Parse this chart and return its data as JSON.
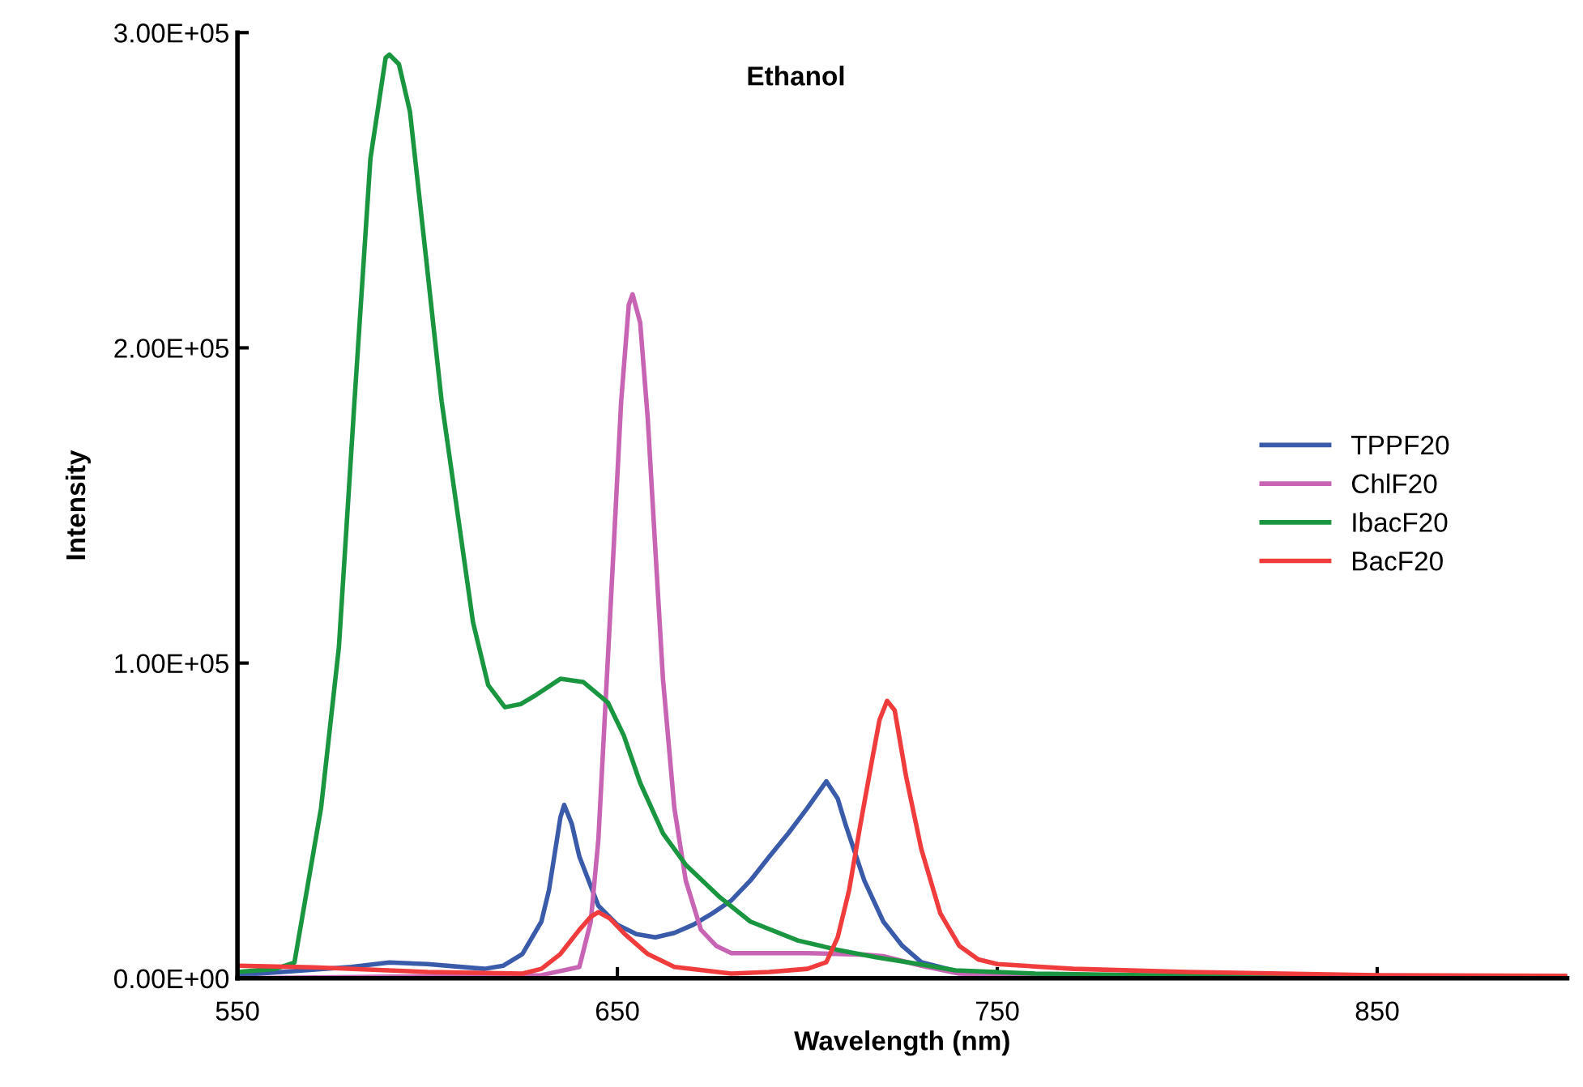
{
  "chart_data": {
    "type": "line",
    "title": "Ethanol",
    "xlabel": "Wavelength (nm)",
    "ylabel": "Intensity",
    "xlim": [
      550,
      900
    ],
    "xticks": [
      550,
      650,
      750,
      850
    ],
    "ylim": [
      0,
      300000
    ],
    "yticks": [
      {
        "value": 0,
        "label": "0.00E+00"
      },
      {
        "value": 100000,
        "label": "1.00E+05"
      },
      {
        "value": 200000,
        "label": "2.00E+05"
      },
      {
        "value": 300000,
        "label": "3.00E+05"
      }
    ],
    "grid": false,
    "legend": "right",
    "marker": "none",
    "line_style": "solid",
    "series": [
      {
        "name": "TPPF20",
        "color": "#3a5baa",
        "x": [
          550,
          580,
          590,
          600,
          615,
          620,
          625,
          630,
          632,
          635,
          636,
          638,
          640,
          645,
          650,
          655,
          660,
          665,
          670,
          675,
          680,
          685,
          690,
          695,
          700,
          705,
          708,
          710,
          715,
          720,
          725,
          730,
          740,
          750,
          900
        ],
        "values": [
          1000,
          3600,
          5000,
          4500,
          3000,
          4000,
          7700,
          18000,
          28000,
          51000,
          55000,
          49000,
          38600,
          23000,
          17000,
          14000,
          13000,
          14400,
          17000,
          20600,
          24700,
          31000,
          38600,
          46000,
          54000,
          62500,
          57000,
          49000,
          31000,
          18000,
          10300,
          5100,
          2000,
          1000,
          500
        ]
      },
      {
        "name": "ChlF20",
        "color": "#c864b4",
        "x": [
          550,
          630,
          640,
          643,
          645,
          647,
          649,
          651,
          653,
          654,
          656,
          658,
          660,
          662,
          665,
          668,
          672,
          676,
          680,
          700,
          715,
          720,
          730,
          740,
          760,
          900
        ],
        "values": [
          0,
          1000,
          3600,
          18000,
          44000,
          90000,
          136000,
          183000,
          213600,
          217000,
          208000,
          177500,
          136000,
          95000,
          54000,
          31000,
          15400,
          10300,
          8000,
          8000,
          7500,
          7000,
          4000,
          1500,
          500,
          0
        ]
      },
      {
        "name": "IbacF20",
        "color": "#1a9641",
        "x": [
          550,
          560,
          565,
          572,
          576.7,
          580.8,
          585,
          589,
          590,
          592.5,
          595.4,
          599.6,
          603.75,
          608,
          612,
          616,
          620.4,
          624.6,
          628.75,
          635,
          641,
          647.5,
          651.7,
          656,
          662,
          668,
          676.7,
          685,
          697.5,
          708,
          718,
          729,
          739,
          760,
          800,
          900
        ],
        "values": [
          2000,
          3000,
          5000,
          54000,
          105000,
          183000,
          260000,
          292000,
          293000,
          290000,
          275000,
          229000,
          183000,
          147000,
          113000,
          93000,
          86000,
          87000,
          90000,
          95000,
          94000,
          87500,
          77000,
          62000,
          46000,
          36000,
          26000,
          18000,
          12000,
          9000,
          6700,
          4600,
          2500,
          1500,
          800,
          300
        ]
      },
      {
        "name": "BacF20",
        "color": "#f03c3c",
        "x": [
          550,
          570,
          600,
          625,
          630,
          635,
          640,
          643,
          645,
          648,
          652,
          658,
          665,
          680,
          690,
          700,
          705,
          708,
          711,
          714,
          717,
          719,
          721,
          723,
          726,
          730,
          735,
          740,
          745,
          750,
          770,
          800,
          850,
          900
        ],
        "values": [
          4000,
          3500,
          2000,
          1500,
          3000,
          7700,
          15400,
          19500,
          21000,
          19000,
          14000,
          7700,
          3600,
          1500,
          2000,
          3000,
          5100,
          13000,
          28000,
          49000,
          69000,
          82000,
          88000,
          85000,
          64000,
          41000,
          20600,
          10300,
          6000,
          4500,
          3000,
          2000,
          1000,
          800
        ]
      }
    ]
  }
}
